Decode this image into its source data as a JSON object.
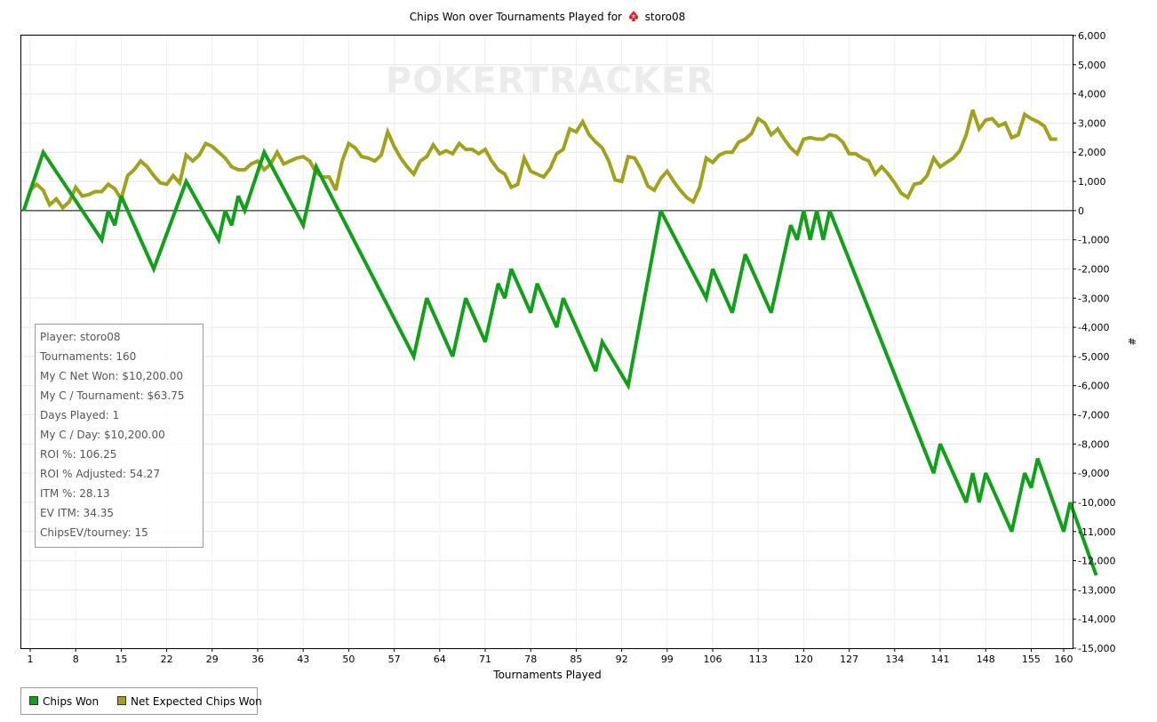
{
  "chart_data": {
    "type": "line",
    "title": "Chips Won over Tournaments Played for",
    "title_player": "storo08",
    "xlabel": "Tournaments Played",
    "ylabel": "#",
    "xlim": [
      1,
      160
    ],
    "ylim": [
      -15000,
      6000
    ],
    "xticks": [
      1,
      8,
      15,
      22,
      29,
      36,
      43,
      50,
      57,
      64,
      71,
      78,
      85,
      92,
      99,
      106,
      113,
      120,
      127,
      134,
      141,
      148,
      155,
      160
    ],
    "yticks": [
      6000,
      5000,
      4000,
      3000,
      2000,
      1000,
      0,
      -1000,
      -2000,
      -3000,
      -4000,
      -5000,
      -6000,
      -7000,
      -8000,
      -9000,
      -10000,
      -11000,
      -12000,
      -13000,
      -14000,
      -15000
    ],
    "ytick_labels": [
      "6,000",
      "5,000",
      "4,000",
      "3,000",
      "2,000",
      "1,000",
      "0",
      "-1,000",
      "-2,000",
      "-3,000",
      "-4,000",
      "-5,000",
      "-6,000",
      "-7,000",
      "-8,000",
      "-9,000",
      "-10,000",
      "-11,000",
      "-12,000",
      "-13,000",
      "-14,000",
      "-15,000"
    ],
    "grid": true,
    "legend_position": "bottom-left",
    "watermark": "POKERTRACKER",
    "series": [
      {
        "name": "Chips Won",
        "color": "#11a01a",
        "points": [
          [
            0,
            0
          ],
          [
            3,
            2000
          ],
          [
            12,
            -1000
          ],
          [
            13,
            0
          ],
          [
            14,
            -500
          ],
          [
            15,
            500
          ],
          [
            20,
            -2000
          ],
          [
            25,
            1000
          ],
          [
            30,
            -1000
          ],
          [
            31,
            0
          ],
          [
            32,
            -500
          ],
          [
            33,
            500
          ],
          [
            34,
            0
          ],
          [
            37,
            2000
          ],
          [
            43,
            -500
          ],
          [
            45,
            1500
          ],
          [
            60,
            -5000
          ],
          [
            62,
            -3000
          ],
          [
            66,
            -5000
          ],
          [
            68,
            -3000
          ],
          [
            71,
            -4500
          ],
          [
            73,
            -2500
          ],
          [
            74,
            -3000
          ],
          [
            75,
            -2000
          ],
          [
            78,
            -3500
          ],
          [
            79,
            -2500
          ],
          [
            82,
            -4000
          ],
          [
            83,
            -3000
          ],
          [
            88,
            -5500
          ],
          [
            89,
            -4500
          ],
          [
            93,
            -6000
          ],
          [
            98,
            0
          ],
          [
            105,
            -3000
          ],
          [
            106,
            -2000
          ],
          [
            109,
            -3500
          ],
          [
            111,
            -1500
          ],
          [
            115,
            -3500
          ],
          [
            118,
            -500
          ],
          [
            119,
            -1000
          ],
          [
            120,
            0
          ],
          [
            121,
            -1000
          ],
          [
            122,
            0
          ],
          [
            123,
            -1000
          ],
          [
            124,
            0
          ],
          [
            140,
            -9000
          ],
          [
            141,
            -8000
          ],
          [
            145,
            -10000
          ],
          [
            146,
            -9000
          ],
          [
            147,
            -10000
          ],
          [
            148,
            -9000
          ],
          [
            152,
            -11000
          ],
          [
            154,
            -9000
          ],
          [
            155,
            -9500
          ],
          [
            156,
            -8500
          ],
          [
            160,
            -11000
          ],
          [
            161,
            -10000
          ],
          [
            165,
            -12500
          ]
        ]
      },
      {
        "name": "Net Expected Chips Won",
        "color": "#9fa31b",
        "points": [
          [
            0,
            0
          ],
          [
            1,
            700
          ],
          [
            2,
            900
          ],
          [
            3,
            700
          ],
          [
            4,
            200
          ],
          [
            5,
            400
          ],
          [
            6,
            100
          ],
          [
            7,
            300
          ],
          [
            8,
            800
          ],
          [
            9,
            500
          ],
          [
            10,
            550
          ],
          [
            11,
            650
          ],
          [
            12,
            650
          ],
          [
            13,
            900
          ],
          [
            14,
            750
          ],
          [
            15,
            400
          ],
          [
            16,
            1200
          ],
          [
            17,
            1400
          ],
          [
            18,
            1700
          ],
          [
            19,
            1500
          ],
          [
            20,
            1200
          ],
          [
            21,
            950
          ],
          [
            22,
            900
          ],
          [
            23,
            1200
          ],
          [
            24,
            950
          ],
          [
            25,
            1900
          ],
          [
            26,
            1700
          ],
          [
            27,
            1900
          ],
          [
            28,
            2300
          ],
          [
            29,
            2200
          ],
          [
            30,
            2000
          ],
          [
            31,
            1800
          ],
          [
            32,
            1500
          ],
          [
            33,
            1400
          ],
          [
            34,
            1400
          ],
          [
            35,
            1600
          ],
          [
            36,
            1700
          ],
          [
            37,
            1400
          ],
          [
            38,
            1600
          ],
          [
            39,
            2000
          ],
          [
            40,
            1600
          ],
          [
            41,
            1700
          ],
          [
            42,
            1800
          ],
          [
            43,
            1850
          ],
          [
            44,
            1700
          ],
          [
            45,
            1300
          ],
          [
            46,
            1150
          ],
          [
            47,
            1150
          ],
          [
            48,
            700
          ],
          [
            49,
            1700
          ],
          [
            50,
            2300
          ],
          [
            51,
            2150
          ],
          [
            52,
            1850
          ],
          [
            53,
            1800
          ],
          [
            54,
            1700
          ],
          [
            55,
            1900
          ],
          [
            56,
            2700
          ],
          [
            57,
            2200
          ],
          [
            58,
            1800
          ],
          [
            59,
            1500
          ],
          [
            60,
            1250
          ],
          [
            61,
            1700
          ],
          [
            62,
            1850
          ],
          [
            63,
            2250
          ],
          [
            64,
            1950
          ],
          [
            65,
            2050
          ],
          [
            66,
            1950
          ],
          [
            67,
            2300
          ],
          [
            68,
            2100
          ],
          [
            69,
            2100
          ],
          [
            70,
            1950
          ],
          [
            71,
            2100
          ],
          [
            72,
            1700
          ],
          [
            73,
            1400
          ],
          [
            74,
            1250
          ],
          [
            75,
            800
          ],
          [
            76,
            900
          ],
          [
            77,
            1800
          ],
          [
            78,
            1350
          ],
          [
            79,
            1250
          ],
          [
            80,
            1150
          ],
          [
            81,
            1450
          ],
          [
            82,
            1950
          ],
          [
            83,
            2100
          ],
          [
            84,
            2800
          ],
          [
            85,
            2700
          ],
          [
            86,
            3050
          ],
          [
            87,
            2600
          ],
          [
            88,
            2350
          ],
          [
            89,
            2150
          ],
          [
            90,
            1700
          ],
          [
            91,
            1050
          ],
          [
            92,
            1000
          ],
          [
            93,
            1850
          ],
          [
            94,
            1800
          ],
          [
            95,
            1400
          ],
          [
            96,
            850
          ],
          [
            97,
            700
          ],
          [
            98,
            1100
          ],
          [
            99,
            1350
          ],
          [
            100,
            1000
          ],
          [
            101,
            700
          ],
          [
            102,
            450
          ],
          [
            103,
            300
          ],
          [
            104,
            800
          ],
          [
            105,
            1800
          ],
          [
            106,
            1650
          ],
          [
            107,
            1900
          ],
          [
            108,
            2000
          ],
          [
            109,
            2000
          ],
          [
            110,
            2350
          ],
          [
            111,
            2450
          ],
          [
            112,
            2650
          ],
          [
            113,
            3150
          ],
          [
            114,
            3000
          ],
          [
            115,
            2600
          ],
          [
            116,
            2800
          ],
          [
            117,
            2450
          ],
          [
            118,
            2150
          ],
          [
            119,
            1950
          ],
          [
            120,
            2450
          ],
          [
            121,
            2500
          ],
          [
            122,
            2450
          ],
          [
            123,
            2450
          ],
          [
            124,
            2600
          ],
          [
            125,
            2550
          ],
          [
            126,
            2350
          ],
          [
            127,
            1950
          ],
          [
            128,
            1950
          ],
          [
            129,
            1800
          ],
          [
            130,
            1700
          ],
          [
            131,
            1250
          ],
          [
            132,
            1500
          ],
          [
            133,
            1250
          ],
          [
            134,
            950
          ],
          [
            135,
            600
          ],
          [
            136,
            450
          ],
          [
            137,
            900
          ],
          [
            138,
            950
          ],
          [
            139,
            1200
          ],
          [
            140,
            1800
          ],
          [
            141,
            1500
          ],
          [
            142,
            1650
          ],
          [
            143,
            1800
          ],
          [
            144,
            2050
          ],
          [
            145,
            2600
          ],
          [
            146,
            3450
          ],
          [
            147,
            2800
          ],
          [
            148,
            3100
          ],
          [
            149,
            3150
          ],
          [
            150,
            2900
          ],
          [
            151,
            3000
          ],
          [
            152,
            2500
          ],
          [
            153,
            2600
          ],
          [
            154,
            3300
          ],
          [
            155,
            3150
          ],
          [
            156,
            3050
          ],
          [
            157,
            2900
          ],
          [
            158,
            2450
          ],
          [
            159,
            2450
          ]
        ]
      }
    ]
  },
  "stats_panel": {
    "lines": [
      "Player: storo08",
      "Tournaments: 160",
      "My C Net Won: $10,200.00",
      "My C / Tournament: $63.75",
      "Days Played: 1",
      "My C / Day: $10,200.00",
      "ROI %: 106.25",
      "ROI % Adjusted: 54.27",
      "ITM %: 28.13",
      "EV ITM: 34.35",
      "ChipsEV/tourney: 15"
    ]
  },
  "legend": {
    "items": [
      {
        "label": "Chips Won",
        "color": "#11a01a"
      },
      {
        "label": "Net Expected Chips Won",
        "color": "#9fa31b"
      }
    ]
  }
}
